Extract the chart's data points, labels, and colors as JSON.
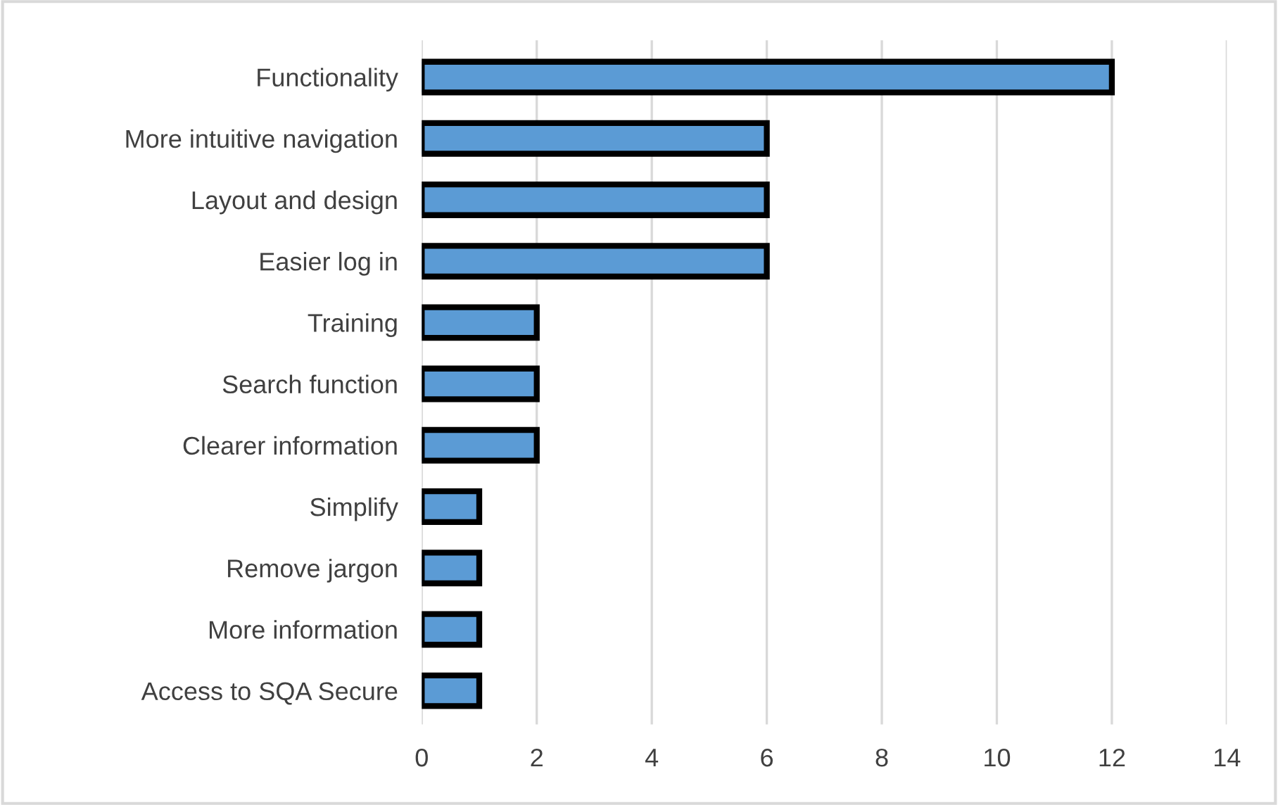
{
  "chart_data": {
    "type": "bar",
    "orientation": "horizontal",
    "categories": [
      "Functionality",
      "More intuitive navigation",
      "Layout and design",
      "Easier log in",
      "Training",
      "Search function",
      "Clearer information",
      "Simplify",
      "Remove jargon",
      "More information",
      "Access to SQA Secure"
    ],
    "values": [
      12,
      6,
      6,
      6,
      2,
      2,
      2,
      1,
      1,
      1,
      1
    ],
    "color": "#5b9bd5",
    "xlim": [
      0,
      14
    ],
    "xticks": [
      0,
      2,
      4,
      6,
      8,
      10,
      12,
      14
    ],
    "grid": "x",
    "legend": false
  }
}
